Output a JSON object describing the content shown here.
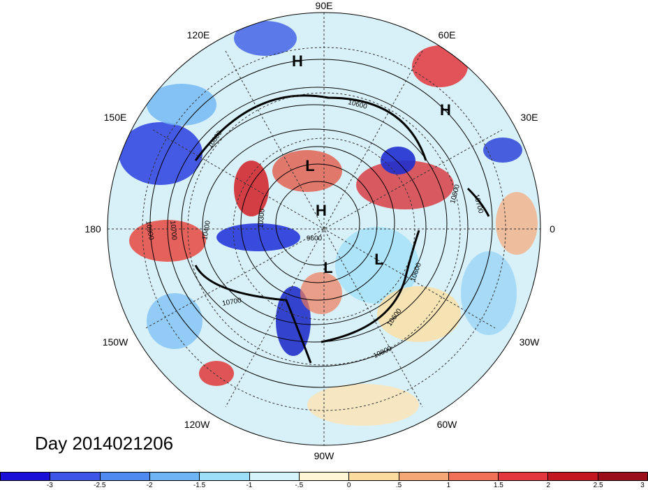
{
  "map": {
    "lon_labels": [
      "90E",
      "60E",
      "30E",
      "0",
      "30W",
      "60W",
      "90W",
      "120W",
      "150W",
      "180",
      "150E",
      "120E"
    ],
    "pressure_centers": [
      "H",
      "H",
      "L",
      "H",
      "L",
      "L"
    ],
    "contour_labels": [
      "10800",
      "10900",
      "10700",
      "10400",
      "10300",
      "9600",
      "10700",
      "10600",
      "10800",
      "10600",
      "10600",
      "10700",
      "10600"
    ],
    "date_label": "Day 2014021206"
  },
  "colorbar": {
    "colors": [
      "#1a0fd6",
      "#3c57e8",
      "#4f8af0",
      "#6db5f5",
      "#9ddff9",
      "#d4f3fb",
      "#fff6d6",
      "#fbdc9e",
      "#f6a776",
      "#f07058",
      "#e4373d",
      "#c2171f",
      "#9a0e1a"
    ],
    "ticks": [
      "-3",
      "-2.5",
      "-2",
      "-1.5",
      "-1",
      "-.5",
      "0",
      ".5",
      "1",
      "1.5",
      "2",
      "2.5",
      "3"
    ]
  }
}
